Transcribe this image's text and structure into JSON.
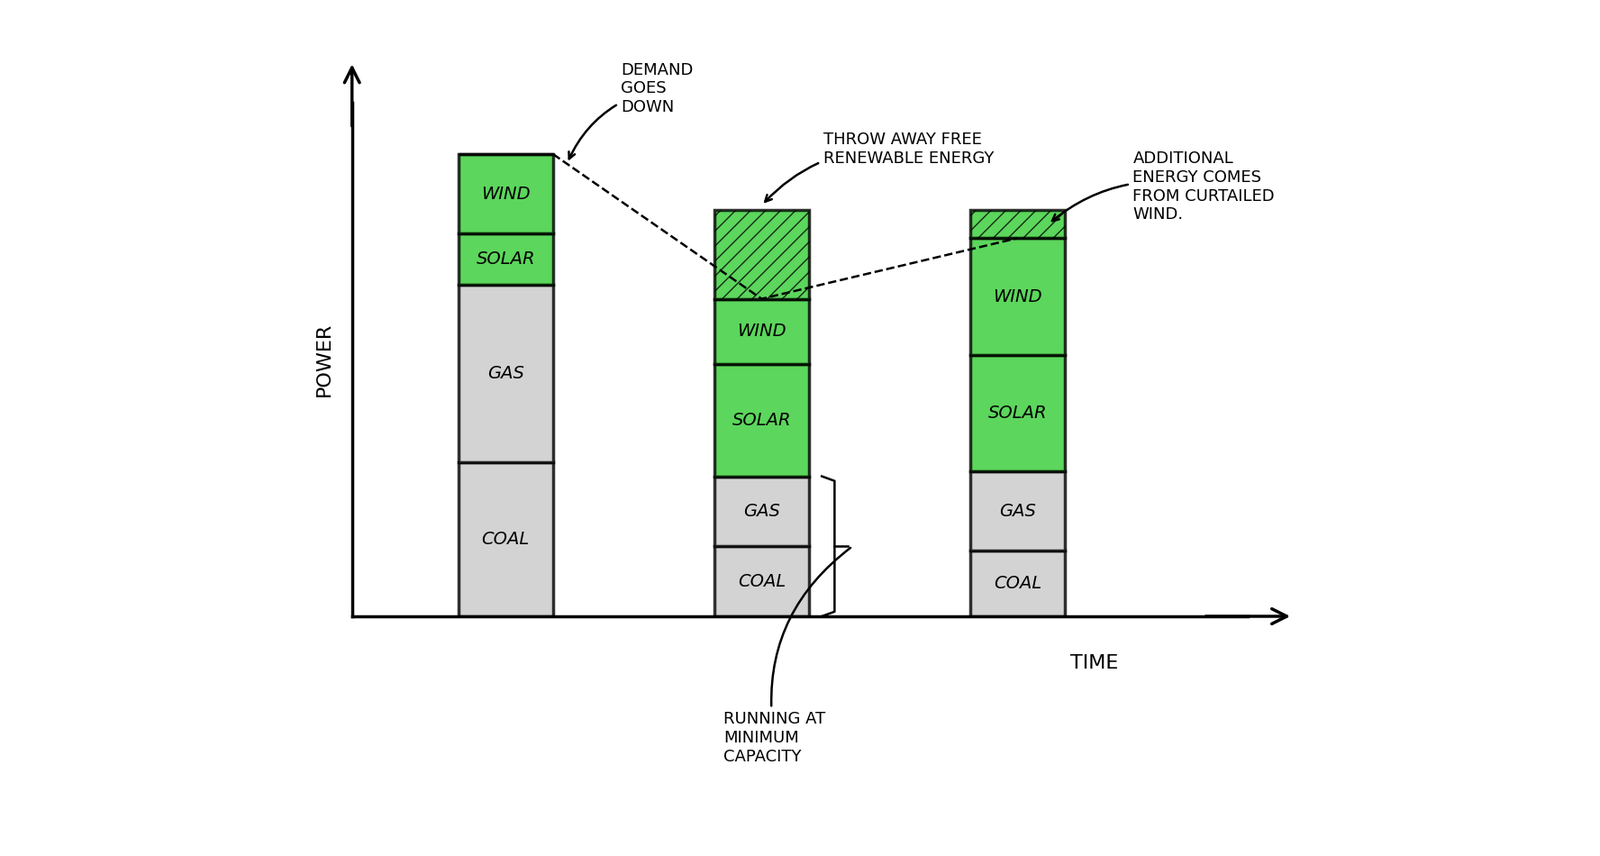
{
  "chart_data": {
    "type": "bar",
    "stacked": true,
    "categories": [
      null,
      null,
      null
    ],
    "xlabel": "TIME",
    "ylabel": "POWER",
    "ylim": [
      0,
      11
    ],
    "tick_labels": false,
    "series": [
      {
        "name": "COAL",
        "color": "#c8c8c8",
        "values": [
          3.3,
          1.5,
          1.4
        ]
      },
      {
        "name": "GAS",
        "color": "#c8c8c8",
        "values": [
          3.8,
          1.5,
          1.7
        ]
      },
      {
        "name": "SOLAR",
        "color": "#33cc33",
        "values": [
          1.1,
          2.4,
          2.5
        ]
      },
      {
        "name": "WIND",
        "color": "#33cc33",
        "values": [
          1.7,
          1.4,
          2.5
        ]
      },
      {
        "name": null,
        "color": "#33cc33",
        "values": [
          0,
          1.9,
          0.6
        ]
      }
    ],
    "annotations": [
      "DEMAND GOES DOWN",
      "THROW AWAY FREE RENEWABLE ENERGY",
      "ADDITIONAL ENERGY COMES FROM CURTAILED WIND.",
      "RUNNING AT MINIMUM CAPACITY"
    ]
  }
}
